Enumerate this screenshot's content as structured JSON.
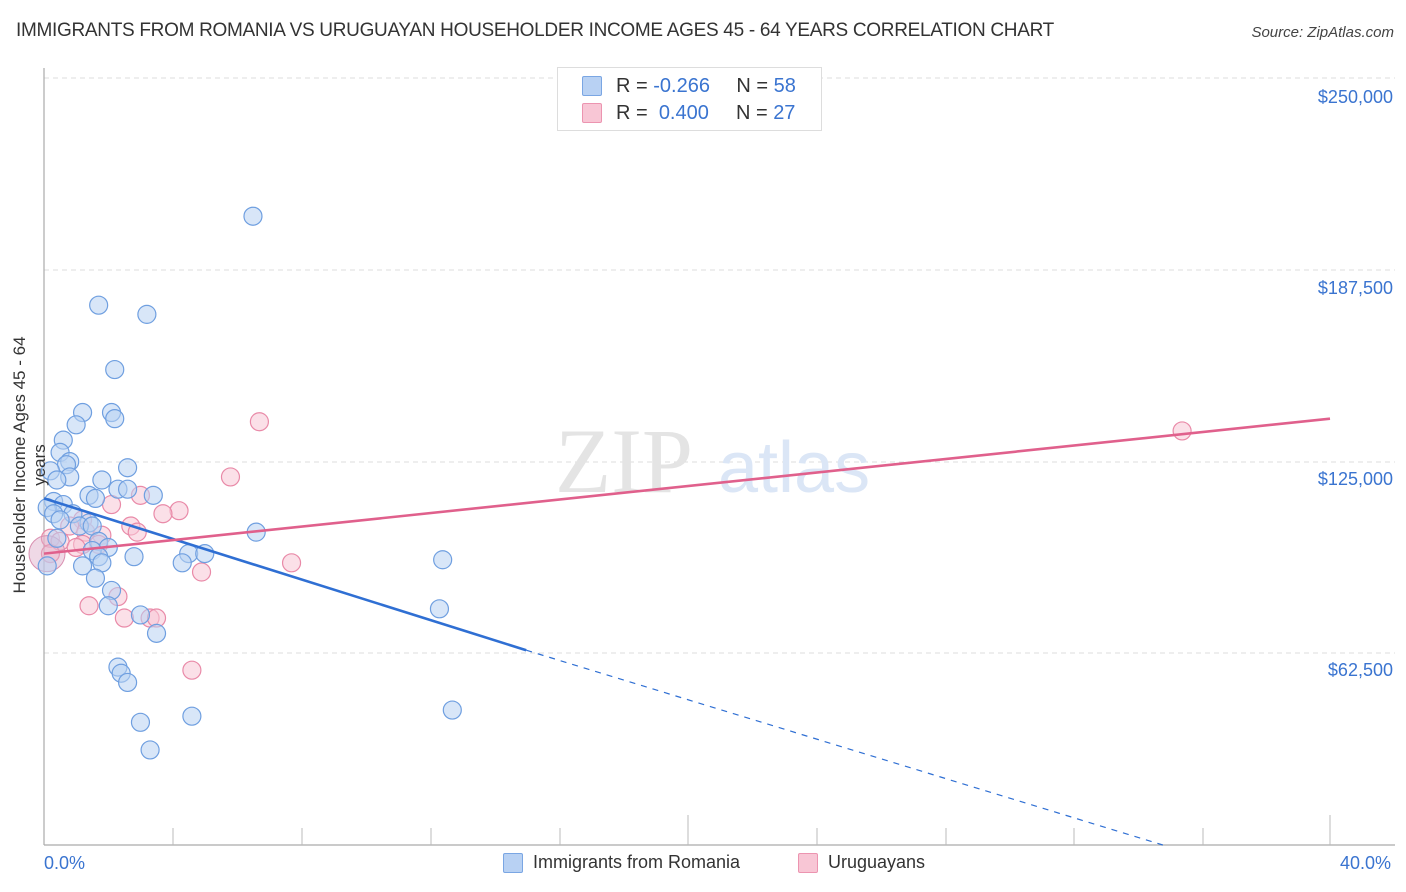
{
  "header": {
    "title": "IMMIGRANTS FROM ROMANIA VS URUGUAYAN HOUSEHOLDER INCOME AGES 45 - 64 YEARS CORRELATION CHART",
    "source": "Source: ZipAtlas.com"
  },
  "watermark": {
    "zip": "ZIP",
    "atlas": "atlas"
  },
  "legend_box": {
    "rows": [
      {
        "series": "Immigrants from Romania",
        "r_label": "R =",
        "r_value": "-0.266",
        "n_label": "N =",
        "n_value": "58",
        "color": "#b8d1f3"
      },
      {
        "series": "Uruguayans",
        "r_label": "R =",
        "r_value": "0.400",
        "n_label": "N =",
        "n_value": "27",
        "color": "#f8c6d5"
      }
    ]
  },
  "axes": {
    "y_title": "Householder Income Ages 45 - 64 years",
    "y_ticks": [
      "$250,000",
      "$187,500",
      "$125,000",
      "$62,500"
    ],
    "x_min_label": "0.0%",
    "x_max_label": "40.0%"
  },
  "bottom_legend": [
    {
      "label": "Immigrants from Romania",
      "color": "#b8d1f3"
    },
    {
      "label": "Uruguayans",
      "color": "#f8c6d5"
    }
  ],
  "chart_data": {
    "type": "scatter",
    "title": "IMMIGRANTS FROM ROMANIA VS URUGUAYAN HOUSEHOLDER INCOME AGES 45 - 64 YEARS CORRELATION CHART",
    "xlabel": "",
    "ylabel": "Householder Income Ages 45 - 64 years",
    "xlim": [
      0,
      40
    ],
    "ylim": [
      0,
      255000
    ],
    "x_unit": "%",
    "y_ticks": [
      62500,
      125000,
      187500,
      250000
    ],
    "grid": "horizontal dashed",
    "legend_position": "top-center and bottom",
    "series": [
      {
        "name": "Immigrants from Romania",
        "color": "#3a74d0",
        "R": -0.266,
        "N": 58,
        "trend": {
          "x0": 0,
          "y0": 113000,
          "x1": 15.0,
          "y1": 63500,
          "dashed_to_x": 34.8,
          "dashed_to_y": 0
        },
        "points": [
          [
            6.5,
            205000
          ],
          [
            1.7,
            176000
          ],
          [
            3.2,
            173000
          ],
          [
            2.2,
            155000
          ],
          [
            1.2,
            141000
          ],
          [
            2.1,
            141000
          ],
          [
            2.2,
            139000
          ],
          [
            1.0,
            137000
          ],
          [
            0.6,
            132000
          ],
          [
            0.5,
            128000
          ],
          [
            0.8,
            125000
          ],
          [
            0.7,
            124000
          ],
          [
            2.6,
            123000
          ],
          [
            0.2,
            122000
          ],
          [
            0.8,
            120000
          ],
          [
            0.4,
            119000
          ],
          [
            1.8,
            119000
          ],
          [
            2.3,
            116000
          ],
          [
            2.6,
            116000
          ],
          [
            3.4,
            114000
          ],
          [
            1.4,
            114000
          ],
          [
            1.6,
            113000
          ],
          [
            0.3,
            112000
          ],
          [
            0.6,
            111000
          ],
          [
            0.1,
            110000
          ],
          [
            0.3,
            108000
          ],
          [
            0.9,
            108000
          ],
          [
            0.5,
            106000
          ],
          [
            1.4,
            105000
          ],
          [
            1.1,
            104000
          ],
          [
            1.5,
            104000
          ],
          [
            6.6,
            102000
          ],
          [
            0.4,
            100000
          ],
          [
            1.7,
            99000
          ],
          [
            2.0,
            97000
          ],
          [
            1.5,
            96000
          ],
          [
            1.7,
            94000
          ],
          [
            4.5,
            95000
          ],
          [
            5.0,
            95000
          ],
          [
            2.8,
            94000
          ],
          [
            12.4,
            93000
          ],
          [
            4.3,
            92000
          ],
          [
            1.8,
            92000
          ],
          [
            1.2,
            91000
          ],
          [
            0.1,
            91000
          ],
          [
            1.6,
            87000
          ],
          [
            2.1,
            83000
          ],
          [
            2.0,
            78000
          ],
          [
            12.3,
            77000
          ],
          [
            3.0,
            75000
          ],
          [
            3.5,
            69000
          ],
          [
            2.3,
            58000
          ],
          [
            2.4,
            56000
          ],
          [
            2.6,
            53000
          ],
          [
            12.7,
            44000
          ],
          [
            4.6,
            42000
          ],
          [
            3.0,
            40000
          ],
          [
            3.3,
            31000
          ]
        ]
      },
      {
        "name": "Uruguayans",
        "color": "#e0608c",
        "R": 0.4,
        "N": 27,
        "trend": {
          "x0": 0,
          "y0": 95000,
          "x1": 40,
          "y1": 139000
        },
        "points": [
          [
            35.4,
            135000
          ],
          [
            6.7,
            138000
          ],
          [
            5.8,
            120000
          ],
          [
            3.0,
            114000
          ],
          [
            2.1,
            111000
          ],
          [
            4.2,
            109000
          ],
          [
            3.7,
            108000
          ],
          [
            1.2,
            106000
          ],
          [
            0.8,
            104000
          ],
          [
            2.7,
            104000
          ],
          [
            1.3,
            102000
          ],
          [
            2.9,
            102000
          ],
          [
            0.2,
            100000
          ],
          [
            0.5,
            99000
          ],
          [
            1.8,
            101000
          ],
          [
            1.7,
            98000
          ],
          [
            1.2,
            98000
          ],
          [
            7.7,
            92000
          ],
          [
            4.9,
            89000
          ],
          [
            0.2,
            95000
          ],
          [
            2.3,
            81000
          ],
          [
            1.4,
            78000
          ],
          [
            2.5,
            74000
          ],
          [
            3.3,
            74000
          ],
          [
            3.5,
            74000
          ],
          [
            4.6,
            57000
          ],
          [
            1.0,
            97000
          ]
        ]
      }
    ]
  }
}
